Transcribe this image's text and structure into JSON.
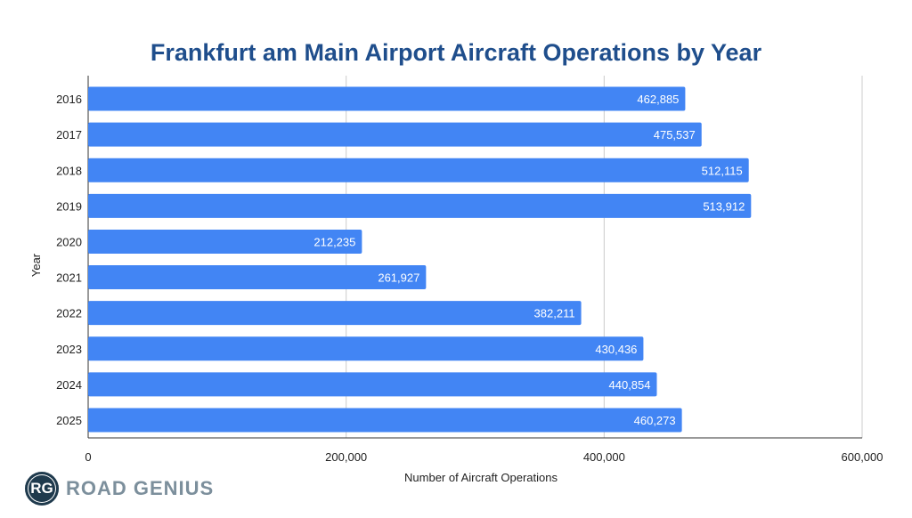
{
  "chart_data": {
    "type": "bar",
    "orientation": "horizontal",
    "title": "Frankfurt am Main Airport Aircraft Operations by Year",
    "xlabel": "Number of Aircraft Operations",
    "ylabel": "Year",
    "categories": [
      "2016",
      "2017",
      "2018",
      "2019",
      "2020",
      "2021",
      "2022",
      "2023",
      "2024",
      "2025"
    ],
    "values": [
      462885,
      475537,
      512115,
      513912,
      212235,
      261927,
      382211,
      430436,
      440854,
      460273
    ],
    "value_labels": [
      "462,885",
      "475,537",
      "512,115",
      "513,912",
      "212,235",
      "261,927",
      "382,211",
      "430,436",
      "440,854",
      "460,273"
    ],
    "xlim": [
      0,
      600000
    ],
    "xticks": [
      0,
      200000,
      400000,
      600000
    ],
    "xtick_labels": [
      "0",
      "200,000",
      "400,000",
      "600,000"
    ],
    "grid": true,
    "bar_color": "#4285f4",
    "title_color": "#1f4e8c"
  },
  "branding": {
    "logo_initials": "RG",
    "logo_text": "ROAD GENIUS"
  }
}
